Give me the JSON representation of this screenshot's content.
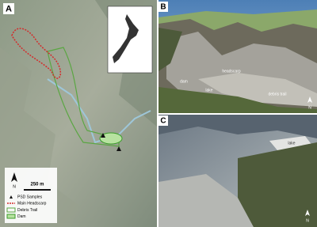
{
  "panels": [
    {
      "label": "A",
      "legend": {
        "north": "N",
        "scale": "250 m",
        "items": [
          "PSD Samples",
          "Main Headscarp",
          "Debris Trail",
          "Dam"
        ]
      }
    },
    {
      "label": "B",
      "annotations": [
        "dam",
        "headscarp",
        "lake",
        "debris trail"
      ],
      "north": "N"
    },
    {
      "label": "C",
      "annotations": [
        "lake"
      ],
      "north": "N"
    }
  ]
}
